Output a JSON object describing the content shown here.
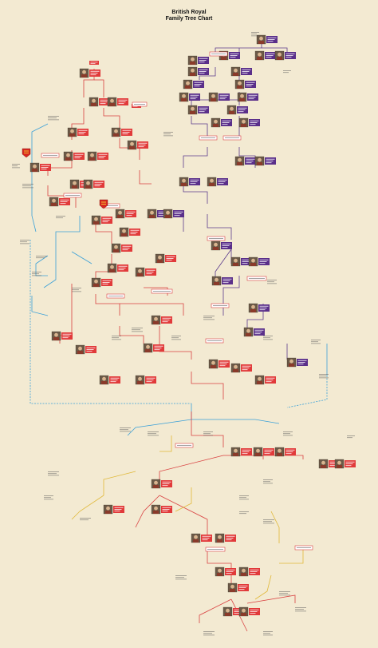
{
  "title_line1": "British Royal",
  "title_line2": "Family Tree Chart",
  "colors": {
    "background": "#f3ead2",
    "england": "#e13a3a",
    "scotland": "#5a2f8a",
    "line_red": "#d94040",
    "line_purple": "#5b3a8c",
    "line_blue": "#3aa0d8",
    "line_yellow": "#e0b838",
    "house_box": "#ffffff"
  },
  "crest": "lion-crest-icon"
}
